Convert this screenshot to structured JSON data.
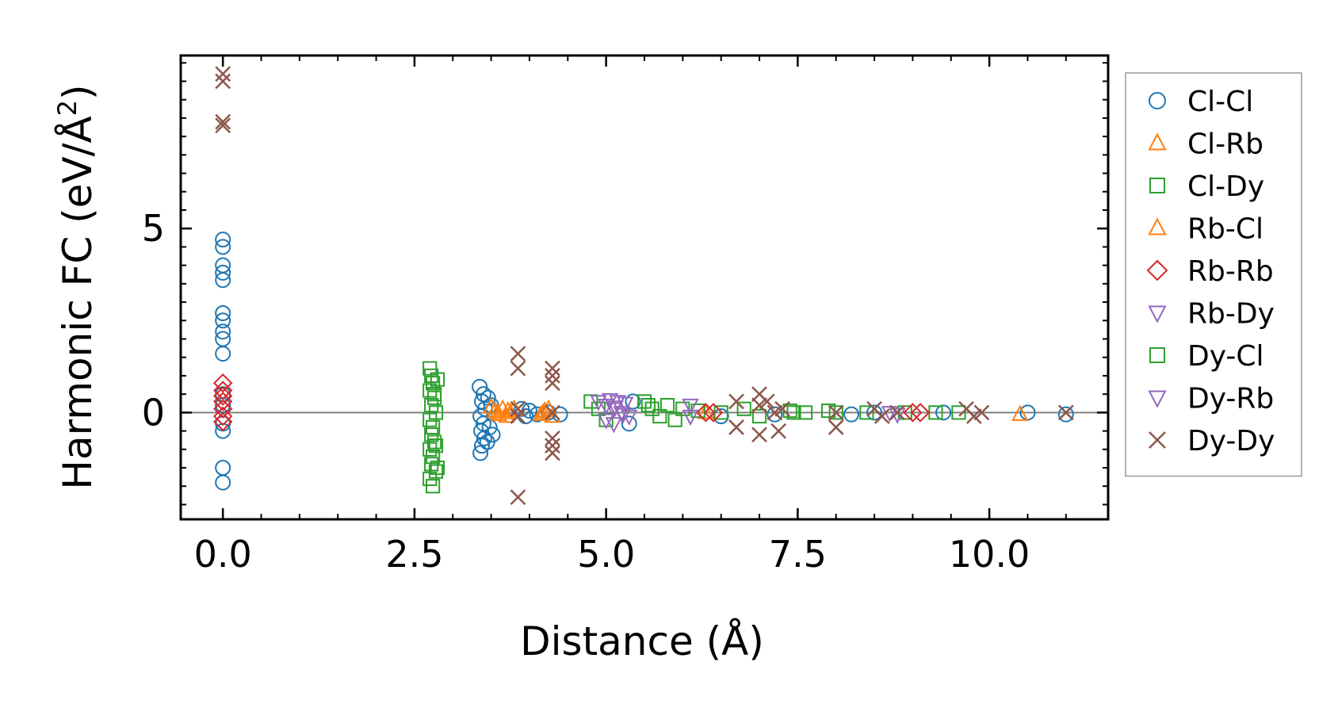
{
  "chart_data": {
    "type": "scatter",
    "title": "",
    "xlabel": "Distance (Å)",
    "ylabel": "Harmonic FC (eV/Å²)",
    "ylabel_parts": {
      "pre": "Harmonic FC (eV/Å",
      "sup": "2",
      "post": ")"
    },
    "xlim": [
      -0.55,
      11.55
    ],
    "ylim": [
      -2.9,
      9.7
    ],
    "x_ticks": [
      0.0,
      2.5,
      5.0,
      7.5,
      10.0
    ],
    "x_tick_labels": [
      "0.0",
      "2.5",
      "5.0",
      "7.5",
      "10.0"
    ],
    "y_ticks": [
      0,
      5
    ],
    "y_tick_labels": [
      "0",
      "5"
    ],
    "zero_line": true,
    "grid": false,
    "legend_position": "outside-right",
    "series": [
      {
        "name": "Cl-Cl",
        "marker": "circle",
        "color": "#1f77b4",
        "points": [
          [
            0,
            4.7
          ],
          [
            0,
            4.5
          ],
          [
            0,
            4.0
          ],
          [
            0,
            3.8
          ],
          [
            0,
            3.6
          ],
          [
            0,
            2.7
          ],
          [
            0,
            2.5
          ],
          [
            0,
            2.2
          ],
          [
            0,
            2.0
          ],
          [
            0,
            1.6
          ],
          [
            0,
            0.5
          ],
          [
            0,
            0.2
          ],
          [
            0,
            -0.3
          ],
          [
            0,
            -0.5
          ],
          [
            0,
            -1.5
          ],
          [
            0,
            -1.9
          ],
          [
            3.35,
            0.7
          ],
          [
            3.4,
            0.5
          ],
          [
            3.38,
            0.3
          ],
          [
            3.42,
            0.1
          ],
          [
            3.36,
            -0.1
          ],
          [
            3.4,
            -0.3
          ],
          [
            3.37,
            -0.5
          ],
          [
            3.41,
            -0.7
          ],
          [
            3.38,
            -0.9
          ],
          [
            3.36,
            -1.1
          ],
          [
            3.45,
            -0.8
          ],
          [
            3.48,
            -0.4
          ],
          [
            3.5,
            0.2
          ],
          [
            3.46,
            0.4
          ],
          [
            3.52,
            -0.6
          ],
          [
            3.9,
            0.1
          ],
          [
            3.95,
            -0.1
          ],
          [
            4.0,
            0.05
          ],
          [
            4.1,
            -0.05
          ],
          [
            4.25,
            0.0
          ],
          [
            4.4,
            -0.05
          ],
          [
            5.3,
            -0.3
          ],
          [
            5.35,
            0.3
          ],
          [
            6.5,
            -0.1
          ],
          [
            7.2,
            -0.05
          ],
          [
            8.2,
            -0.05
          ],
          [
            8.5,
            0.0
          ],
          [
            9.4,
            0.0
          ],
          [
            10.5,
            0.0
          ],
          [
            11.0,
            -0.05
          ]
        ]
      },
      {
        "name": "Cl-Rb",
        "marker": "triangle-up",
        "color": "#ff7f0e",
        "points": [
          [
            3.5,
            0.15
          ],
          [
            3.55,
            0.05
          ],
          [
            3.6,
            -0.05
          ],
          [
            3.65,
            0.1
          ],
          [
            3.7,
            -0.1
          ],
          [
            3.75,
            0.0
          ],
          [
            3.8,
            0.1
          ],
          [
            4.15,
            -0.05
          ],
          [
            4.2,
            0.05
          ],
          [
            4.25,
            0.1
          ],
          [
            4.3,
            -0.1
          ],
          [
            6.3,
            0.0
          ],
          [
            10.4,
            -0.05
          ]
        ]
      },
      {
        "name": "Cl-Dy",
        "marker": "square",
        "color": "#2ca02c",
        "points": [
          [
            2.7,
            1.2
          ],
          [
            2.72,
            1.0
          ],
          [
            2.74,
            0.8
          ],
          [
            2.7,
            0.6
          ],
          [
            2.76,
            0.4
          ],
          [
            2.72,
            0.2
          ],
          [
            2.78,
            0.0
          ],
          [
            2.7,
            -0.2
          ],
          [
            2.74,
            -0.4
          ],
          [
            2.72,
            -0.6
          ],
          [
            2.76,
            -0.8
          ],
          [
            2.7,
            -1.0
          ],
          [
            2.74,
            -1.2
          ],
          [
            2.72,
            -1.4
          ],
          [
            2.78,
            -1.6
          ],
          [
            2.7,
            -1.8
          ],
          [
            2.74,
            -2.0
          ],
          [
            2.8,
            -1.5
          ],
          [
            2.8,
            0.9
          ],
          [
            4.8,
            0.3
          ],
          [
            4.9,
            0.1
          ],
          [
            5.0,
            -0.2
          ],
          [
            5.5,
            0.3
          ],
          [
            5.6,
            0.1
          ],
          [
            5.7,
            -0.1
          ],
          [
            5.8,
            0.2
          ],
          [
            5.9,
            -0.2
          ],
          [
            6.0,
            0.1
          ],
          [
            6.2,
            0.05
          ],
          [
            6.5,
            0.0
          ],
          [
            6.8,
            0.1
          ],
          [
            7.0,
            -0.1
          ],
          [
            7.4,
            0.05
          ],
          [
            7.6,
            0.0
          ],
          [
            7.9,
            0.05
          ],
          [
            8.4,
            0.0
          ],
          [
            8.9,
            0.0
          ],
          [
            9.3,
            0.0
          ],
          [
            9.6,
            0.0
          ]
        ]
      },
      {
        "name": "Rb-Cl",
        "marker": "triangle-up",
        "color": "#ff7f0e",
        "points": [
          [
            3.58,
            0.0
          ],
          [
            3.72,
            0.05
          ],
          [
            4.18,
            0.0
          ]
        ]
      },
      {
        "name": "Rb-Rb",
        "marker": "diamond",
        "color": "#d62728",
        "points": [
          [
            0,
            0.8
          ],
          [
            0,
            0.6
          ],
          [
            0,
            0.45
          ],
          [
            0,
            0.3
          ],
          [
            0,
            0.1
          ],
          [
            0,
            -0.1
          ],
          [
            0,
            -0.25
          ],
          [
            6.3,
            0.0
          ],
          [
            6.4,
            0.0
          ],
          [
            9.0,
            0.0
          ],
          [
            9.1,
            0.0
          ]
        ]
      },
      {
        "name": "Rb-Dy",
        "marker": "triangle-down",
        "color": "#9467bd",
        "points": [
          [
            4.9,
            0.3
          ],
          [
            5.0,
            0.2
          ],
          [
            5.05,
            0.35
          ],
          [
            5.1,
            0.1
          ],
          [
            5.15,
            0.3
          ],
          [
            5.2,
            0.0
          ],
          [
            5.25,
            0.25
          ],
          [
            5.3,
            -0.1
          ],
          [
            5.0,
            -0.2
          ],
          [
            5.1,
            -0.3
          ],
          [
            6.1,
            0.2
          ],
          [
            6.1,
            -0.1
          ],
          [
            8.7,
            0.0
          ],
          [
            8.8,
            -0.05
          ]
        ]
      },
      {
        "name": "Dy-Cl",
        "marker": "square",
        "color": "#2ca02c",
        "points": [
          [
            2.76,
            0.5
          ],
          [
            2.78,
            -0.9
          ],
          [
            5.55,
            0.2
          ],
          [
            7.45,
            0.0
          ],
          [
            8.0,
            0.0
          ]
        ]
      },
      {
        "name": "Dy-Rb",
        "marker": "triangle-down",
        "color": "#9467bd",
        "points": [
          [
            5.12,
            0.15
          ],
          [
            5.22,
            -0.05
          ]
        ]
      },
      {
        "name": "Dy-Dy",
        "marker": "x",
        "color": "#8c564b",
        "points": [
          [
            0,
            9.2
          ],
          [
            0,
            9.0
          ],
          [
            0,
            7.9
          ],
          [
            0,
            7.8
          ],
          [
            3.85,
            1.6
          ],
          [
            3.85,
            1.2
          ],
          [
            3.85,
            0.1
          ],
          [
            3.85,
            -0.1
          ],
          [
            3.85,
            -2.3
          ],
          [
            4.3,
            1.2
          ],
          [
            4.3,
            1.0
          ],
          [
            4.3,
            0.8
          ],
          [
            4.3,
            -0.7
          ],
          [
            4.3,
            -0.9
          ],
          [
            4.3,
            -1.1
          ],
          [
            4.3,
            0.0
          ],
          [
            6.7,
            0.3
          ],
          [
            6.7,
            -0.4
          ],
          [
            7.0,
            0.5
          ],
          [
            7.0,
            0.2
          ],
          [
            7.0,
            -0.6
          ],
          [
            7.1,
            0.3
          ],
          [
            7.2,
            0.0
          ],
          [
            7.25,
            -0.5
          ],
          [
            7.3,
            0.1
          ],
          [
            8.0,
            0.0
          ],
          [
            8.0,
            -0.4
          ],
          [
            8.5,
            0.1
          ],
          [
            8.6,
            -0.1
          ],
          [
            8.8,
            0.0
          ],
          [
            9.7,
            0.1
          ],
          [
            9.8,
            -0.1
          ],
          [
            9.9,
            0.0
          ],
          [
            11.0,
            0.0
          ]
        ]
      }
    ]
  }
}
